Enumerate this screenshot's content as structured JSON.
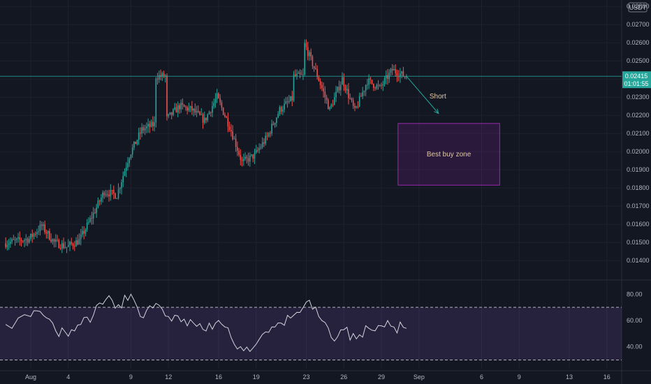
{
  "chart_data": {
    "type": "candlestick",
    "quote_currency": "USDT",
    "price_axis": {
      "ticks": [
        "0.02800",
        "0.02700",
        "0.02600",
        "0.02500",
        "0.02400",
        "0.02300",
        "0.02200",
        "0.02100",
        "0.02000",
        "0.01900",
        "0.01800",
        "0.01700",
        "0.01600",
        "0.01500",
        "0.01400"
      ],
      "range": [
        0.01335,
        0.02835
      ]
    },
    "current_price": {
      "value": "0.02415",
      "countdown": "01:01:55",
      "color": "#26a69a"
    },
    "time_axis": {
      "labels": [
        "Aug",
        "4",
        "9",
        "12",
        "16",
        "19",
        "23",
        "26",
        "29",
        "Sep",
        "6",
        "9",
        "13",
        "16"
      ],
      "dates": [
        "2023-08-01",
        "2023-08-04",
        "2023-08-09",
        "2023-08-12",
        "2023-08-16",
        "2023-08-19",
        "2023-08-23",
        "2023-08-26",
        "2023-08-29",
        "2023-09-01",
        "2023-09-06",
        "2023-09-09",
        "2023-09-13",
        "2023-09-16"
      ]
    },
    "colors": {
      "up": "#26a69a",
      "down": "#ef5350",
      "background": "#131722",
      "grid": "#1e2230",
      "rsi_line": "#d1d4dc",
      "rsi_band": "#7e57c2"
    },
    "anchors": [
      {
        "t": "2023-07-30",
        "p": 0.01495
      },
      {
        "t": "2023-08-01",
        "p": 0.0152
      },
      {
        "t": "2023-08-02",
        "p": 0.0159
      },
      {
        "t": "2023-08-03",
        "p": 0.015
      },
      {
        "t": "2023-08-04",
        "p": 0.01475
      },
      {
        "t": "2023-08-05",
        "p": 0.0151
      },
      {
        "t": "2023-08-06",
        "p": 0.0164
      },
      {
        "t": "2023-08-07",
        "p": 0.0178
      },
      {
        "t": "2023-08-08",
        "p": 0.0176
      },
      {
        "t": "2023-08-09",
        "p": 0.0198
      },
      {
        "t": "2023-08-10",
        "p": 0.0212
      },
      {
        "t": "2023-08-11",
        "p": 0.0215
      },
      {
        "t": "2023-08-11T12",
        "p": 0.0235
      },
      {
        "t": "2023-08-12",
        "p": 0.0218
      },
      {
        "t": "2023-08-13",
        "p": 0.0225
      },
      {
        "t": "2023-08-14",
        "p": 0.0223
      },
      {
        "t": "2023-08-15",
        "p": 0.0217
      },
      {
        "t": "2023-08-16",
        "p": 0.023
      },
      {
        "t": "2023-08-17",
        "p": 0.0214
      },
      {
        "t": "2023-08-18",
        "p": 0.0194
      },
      {
        "t": "2023-08-19",
        "p": 0.0198
      },
      {
        "t": "2023-08-20",
        "p": 0.0208
      },
      {
        "t": "2023-08-21",
        "p": 0.0223
      },
      {
        "t": "2023-08-22",
        "p": 0.0229
      },
      {
        "t": "2023-08-22T18",
        "p": 0.0256
      },
      {
        "t": "2023-08-23",
        "p": 0.0259
      },
      {
        "t": "2023-08-24",
        "p": 0.0242
      },
      {
        "t": "2023-08-25",
        "p": 0.0223
      },
      {
        "t": "2023-08-26",
        "p": 0.024
      },
      {
        "t": "2023-08-27",
        "p": 0.0222
      },
      {
        "t": "2023-08-28",
        "p": 0.0239
      },
      {
        "t": "2023-08-29",
        "p": 0.0235
      },
      {
        "t": "2023-08-30",
        "p": 0.0245
      },
      {
        "t": "2023-08-31",
        "p": 0.02415
      }
    ],
    "rsi": {
      "ticks": [
        "80.00",
        "60.00",
        "40.00"
      ],
      "range": [
        25,
        86
      ],
      "band": [
        30,
        70
      ],
      "points": [
        {
          "t": "2023-07-30",
          "v": 57
        },
        {
          "t": "2023-08-01",
          "v": 63
        },
        {
          "t": "2023-08-02",
          "v": 64
        },
        {
          "t": "2023-08-03",
          "v": 52
        },
        {
          "t": "2023-08-04",
          "v": 48
        },
        {
          "t": "2023-08-05",
          "v": 57
        },
        {
          "t": "2023-08-06",
          "v": 64
        },
        {
          "t": "2023-08-07",
          "v": 76
        },
        {
          "t": "2023-08-08",
          "v": 72
        },
        {
          "t": "2023-08-09",
          "v": 80
        },
        {
          "t": "2023-08-10",
          "v": 62
        },
        {
          "t": "2023-08-11",
          "v": 73
        },
        {
          "t": "2023-08-12",
          "v": 63
        },
        {
          "t": "2023-08-13",
          "v": 59
        },
        {
          "t": "2023-08-14",
          "v": 58
        },
        {
          "t": "2023-08-15",
          "v": 52
        },
        {
          "t": "2023-08-16",
          "v": 60
        },
        {
          "t": "2023-08-17",
          "v": 47
        },
        {
          "t": "2023-08-18",
          "v": 37
        },
        {
          "t": "2023-08-19",
          "v": 42
        },
        {
          "t": "2023-08-20",
          "v": 51
        },
        {
          "t": "2023-08-21",
          "v": 58
        },
        {
          "t": "2023-08-22",
          "v": 64
        },
        {
          "t": "2023-08-23",
          "v": 74
        },
        {
          "t": "2023-08-24",
          "v": 63
        },
        {
          "t": "2023-08-25",
          "v": 47
        },
        {
          "t": "2023-08-26",
          "v": 53
        },
        {
          "t": "2023-08-27",
          "v": 46
        },
        {
          "t": "2023-08-28",
          "v": 54
        },
        {
          "t": "2023-08-29",
          "v": 56
        },
        {
          "t": "2023-08-30",
          "v": 55
        },
        {
          "t": "2023-08-31",
          "v": 54
        }
      ]
    },
    "annotations": {
      "short_label": "Short",
      "arrow_from": {
        "t": "2023-08-31",
        "p": 0.02415
      },
      "arrow_to": {
        "t": "2023-09-02",
        "p": 0.0221
      },
      "buy_zone": {
        "label": "Best buy zone",
        "t_start": "2023-09-01",
        "t_end": "2023-09-08",
        "p_top": 0.02155,
        "p_bottom": 0.01815,
        "color": "#9c27b0"
      }
    }
  }
}
